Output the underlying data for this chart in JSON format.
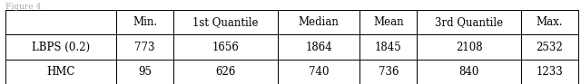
{
  "caption": "Figure 4",
  "columns": [
    "",
    "Min.",
    "1st Quantile",
    "Median",
    "Mean",
    "3rd Quantile",
    "Max."
  ],
  "rows": [
    [
      "LBPS (0.2)",
      "773",
      "1656",
      "1864",
      "1845",
      "2108",
      "2532"
    ],
    [
      "HMC",
      "95",
      "626",
      "740",
      "736",
      "840",
      "1233"
    ]
  ],
  "background_color": "#ffffff",
  "border_color": "#000000",
  "text_color": "#000000",
  "fontsize": 8.5,
  "caption_fontsize": 6.5,
  "caption_color": "#aaaaaa",
  "fig_width": 6.4,
  "fig_height": 0.93,
  "dpi": 100
}
